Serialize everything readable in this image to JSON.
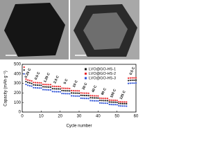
{
  "chart_data": {
    "type": "scatter",
    "x_label": "Cycle number",
    "y_label": "Capacity (mAh g⁻¹)",
    "xlim": [
      0,
      60
    ],
    "xticks": [
      0,
      10,
      20,
      30,
      40,
      50,
      60
    ],
    "ylim": [
      0,
      500
    ],
    "yticks": [
      0,
      100,
      200,
      300,
      400,
      500
    ],
    "x": [
      1,
      2,
      3,
      4,
      5,
      6,
      7,
      8,
      9,
      10,
      11,
      12,
      13,
      14,
      15,
      16,
      17,
      18,
      19,
      20,
      21,
      22,
      23,
      24,
      25,
      26,
      27,
      28,
      29,
      30,
      31,
      32,
      33,
      34,
      35,
      36,
      37,
      38,
      39,
      40,
      41,
      42,
      43,
      44,
      45,
      46,
      47,
      48,
      49,
      50,
      51,
      52,
      53,
      54,
      55,
      56,
      57,
      58,
      59,
      60
    ],
    "series": [
      {
        "name": "LVO@GO-HS-1",
        "color": "#1a1a1a",
        "values": [
          440,
          320,
          310,
          305,
          300,
          285,
          283,
          282,
          281,
          280,
          265,
          264,
          263,
          262,
          262,
          245,
          244,
          243,
          243,
          242,
          225,
          224,
          223,
          223,
          222,
          200,
          199,
          198,
          198,
          197,
          175,
          174,
          173,
          173,
          172,
          150,
          149,
          148,
          148,
          147,
          122,
          121,
          120,
          120,
          119,
          105,
          104,
          103,
          103,
          102,
          90,
          89,
          88,
          88,
          87,
          330,
          332,
          333,
          333,
          334
        ]
      },
      {
        "name": "LVO@GO-HS-2",
        "color": "#e8262a",
        "values": [
          470,
          345,
          335,
          330,
          326,
          310,
          308,
          307,
          306,
          305,
          290,
          289,
          288,
          287,
          287,
          270,
          269,
          268,
          268,
          267,
          250,
          249,
          248,
          248,
          247,
          225,
          224,
          223,
          223,
          222,
          200,
          199,
          198,
          198,
          197,
          172,
          171,
          170,
          170,
          169,
          145,
          144,
          143,
          143,
          142,
          125,
          124,
          123,
          123,
          122,
          108,
          107,
          106,
          106,
          105,
          355,
          357,
          358,
          358,
          359
        ]
      },
      {
        "name": "LVO@GO-HS-3",
        "color": "#2a4fd6",
        "values": [
          400,
          290,
          280,
          275,
          272,
          255,
          254,
          253,
          252,
          252,
          235,
          234,
          233,
          232,
          232,
          215,
          214,
          213,
          213,
          212,
          195,
          194,
          193,
          193,
          192,
          170,
          169,
          168,
          168,
          167,
          145,
          144,
          143,
          143,
          142,
          120,
          119,
          118,
          118,
          117,
          95,
          94,
          93,
          93,
          92,
          80,
          79,
          78,
          78,
          77,
          65,
          64,
          63,
          63,
          62,
          300,
          302,
          303,
          303,
          304
        ]
      }
    ],
    "annotations": [
      "0.25 C",
      "0.5 C",
      "1.25 C",
      "2.5 C",
      "5 C",
      "10 C",
      "20 C",
      "40 C",
      "80 C",
      "100 C",
      "125 C",
      "0.5 C"
    ]
  }
}
